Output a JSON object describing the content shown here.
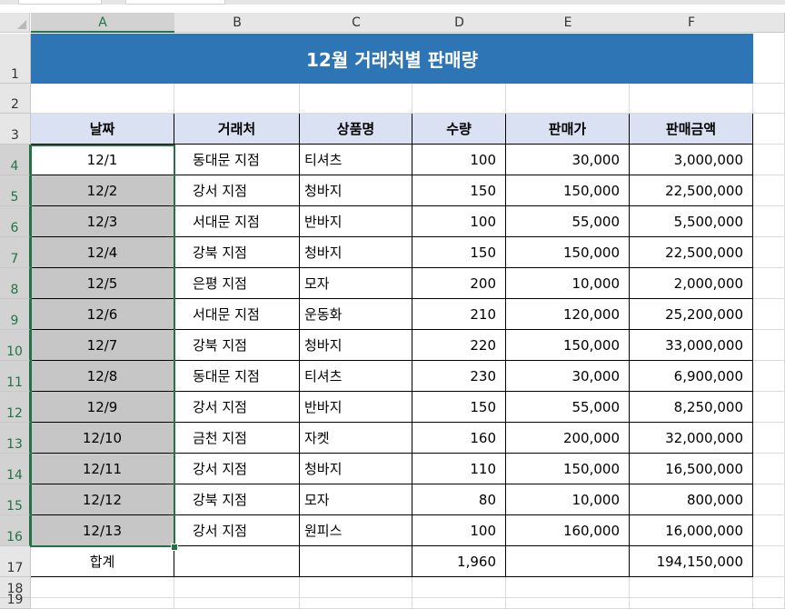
{
  "columns": [
    "A",
    "B",
    "C",
    "D",
    "E",
    "F"
  ],
  "rows": [
    "1",
    "2",
    "3",
    "4",
    "5",
    "6",
    "7",
    "8",
    "9",
    "10",
    "11",
    "12",
    "13",
    "14",
    "15",
    "16",
    "17",
    "18",
    "19"
  ],
  "title": "12월 거래처별 판매량",
  "table": {
    "headers": [
      "날짜",
      "거래처",
      "상품명",
      "수량",
      "판매가",
      "판매금액"
    ],
    "rows": [
      [
        "12/1",
        "동대문 지점",
        "티셔츠",
        "100",
        "30,000",
        "3,000,000"
      ],
      [
        "12/2",
        "강서 지점",
        "청바지",
        "150",
        "150,000",
        "22,500,000"
      ],
      [
        "12/3",
        "서대문 지점",
        "반바지",
        "100",
        "55,000",
        "5,500,000"
      ],
      [
        "12/4",
        "강북 지점",
        "청바지",
        "150",
        "150,000",
        "22,500,000"
      ],
      [
        "12/5",
        "은평 지점",
        "모자",
        "200",
        "10,000",
        "2,000,000"
      ],
      [
        "12/6",
        "서대문 지점",
        "운동화",
        "210",
        "120,000",
        "25,200,000"
      ],
      [
        "12/7",
        "강북 지점",
        "청바지",
        "220",
        "150,000",
        "33,000,000"
      ],
      [
        "12/8",
        "동대문 지점",
        "티셔츠",
        "230",
        "30,000",
        "6,900,000"
      ],
      [
        "12/9",
        "강서 지점",
        "반바지",
        "150",
        "55,000",
        "8,250,000"
      ],
      [
        "12/10",
        "금천 지점",
        "자켓",
        "160",
        "200,000",
        "32,000,000"
      ],
      [
        "12/11",
        "강서  지점",
        "청바지",
        "110",
        "150,000",
        "16,500,000"
      ],
      [
        "12/12",
        "강북 지점",
        "모자",
        "80",
        "10,000",
        "800,000"
      ],
      [
        "12/13",
        "강서 지점",
        "원피스",
        "100",
        "160,000",
        "16,000,000"
      ]
    ],
    "total": [
      "합계",
      "",
      "",
      "1,960",
      "",
      "194,150,000"
    ]
  },
  "colors": {
    "title_bg": "#2e75b6",
    "header_bg": "#d9e1f2",
    "selection": "#217346"
  }
}
